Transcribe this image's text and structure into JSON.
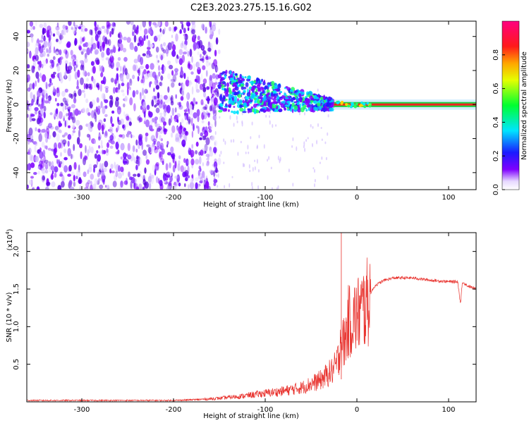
{
  "title": "C2E3.2023.275.15.16.G02",
  "chart_data": [
    {
      "type": "heatmap",
      "xlabel": "Height of straight line (km)",
      "ylabel": "Frequency (Hz)",
      "xlim": [
        -360,
        130
      ],
      "ylim": [
        -50,
        49
      ],
      "xticks": [
        -300,
        -200,
        -100,
        0,
        100
      ],
      "yticks": [
        -40,
        -20,
        0,
        20,
        40
      ],
      "colorbar": {
        "label": "Normalized spectral amplitude",
        "range": [
          0,
          1
        ],
        "ticks": [
          0.0,
          0.2,
          0.4,
          0.6,
          0.8
        ],
        "colormap": "rainbow"
      },
      "regions": [
        {
          "x_range": [
            -360,
            -150
          ],
          "description_level": 0.15
        },
        {
          "x_range": [
            -150,
            -25
          ],
          "center_freq_hz": [
            7,
            0
          ],
          "level": 0.35
        },
        {
          "x_range": [
            -25,
            130
          ],
          "center_freq_hz": 0,
          "level": 0.9
        }
      ]
    },
    {
      "type": "line",
      "xlabel": "Height of straight line (km)",
      "ylabel": "SNR (10 * v/v)",
      "y_scale_label": "(x10^4)",
      "xlim": [
        -360,
        130
      ],
      "ylim": [
        0,
        2.25
      ],
      "xticks": [
        -300,
        -200,
        -100,
        0,
        100
      ],
      "yticks": [
        0.5,
        1.0,
        1.5,
        2.0
      ],
      "series": [
        {
          "color": "#e8302b",
          "x": [
            -360,
            -300,
            -250,
            -200,
            -175,
            -150,
            -125,
            -100,
            -80,
            -60,
            -50,
            -40,
            -30,
            -25,
            -20,
            -18,
            -15,
            -12,
            -10,
            -5,
            0,
            10,
            20,
            30,
            40,
            60,
            80,
            100,
            110,
            113,
            115,
            120,
            130
          ],
          "y": [
            0.02,
            0.02,
            0.02,
            0.02,
            0.03,
            0.05,
            0.08,
            0.12,
            0.15,
            0.2,
            0.25,
            0.3,
            0.4,
            0.45,
            0.6,
            0.9,
            0.8,
            0.9,
            1.1,
            1.15,
            1.2,
            1.35,
            1.55,
            1.62,
            1.65,
            1.65,
            1.62,
            1.6,
            1.6,
            1.3,
            1.6,
            1.55,
            1.5
          ]
        }
      ]
    }
  ]
}
